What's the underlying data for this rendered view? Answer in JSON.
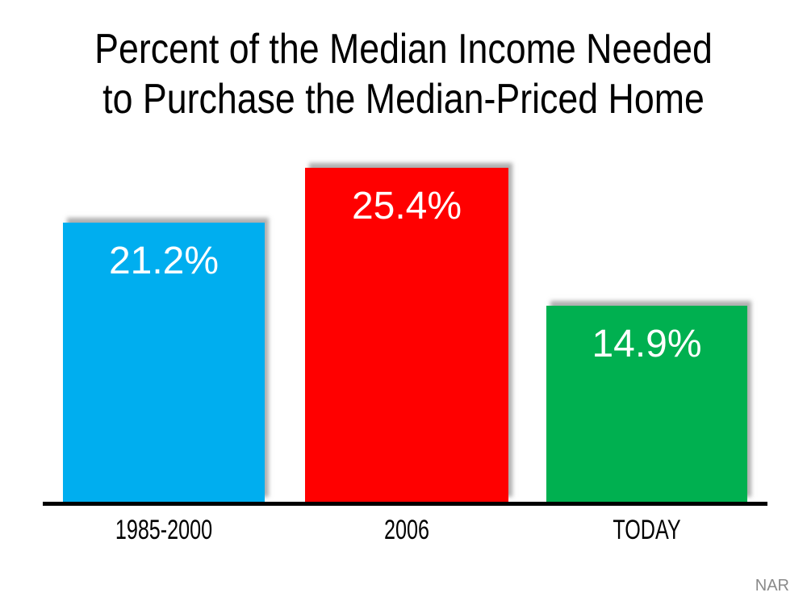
{
  "title": {
    "line1": "Percent of the Median Income Needed",
    "line2": "to Purchase the Median-Priced Home"
  },
  "source": "NAR",
  "colors": {
    "bar_blue": "#00AEEF",
    "bar_red": "#FF0000",
    "bar_green": "#00B050",
    "axis": "#000000",
    "value_text": "#FFFFFF",
    "source_text": "#8A8A8A"
  },
  "chart_data": {
    "type": "bar",
    "title": "Percent of the Median Income Needed to Purchase the Median-Priced Home",
    "categories": [
      "1985-2000",
      "2006",
      "TODAY"
    ],
    "values": [
      21.2,
      25.4,
      14.9
    ],
    "value_labels": [
      "21.2%",
      "25.4%",
      "14.9%"
    ],
    "colors": [
      "#00AEEF",
      "#FF0000",
      "#00B050"
    ],
    "xlabel": "",
    "ylabel": "",
    "ylim": [
      0,
      26
    ],
    "grid": false,
    "legend": false,
    "value_label_position": "inside-top",
    "source": "NAR"
  }
}
